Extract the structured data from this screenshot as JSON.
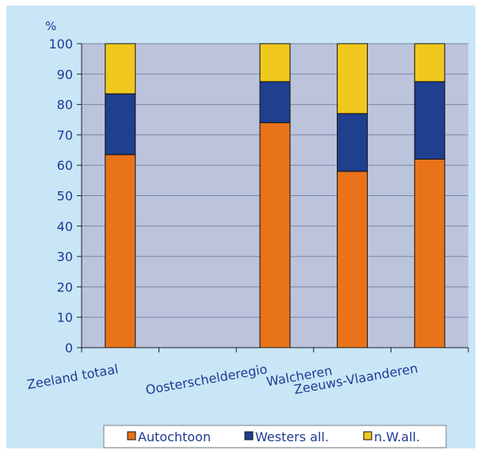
{
  "chart_data": {
    "type": "bar",
    "stacked": true,
    "ylabel": "%",
    "ylim": [
      0,
      100
    ],
    "yticks": [
      0,
      10,
      20,
      30,
      40,
      50,
      60,
      70,
      80,
      90,
      100
    ],
    "grid": true,
    "legend_position": "bottom",
    "categories": [
      "Zeeland totaal",
      "",
      "Oosterschelderegio",
      "Walcheren",
      "Zeeuws-Vlaanderen"
    ],
    "series": [
      {
        "name": "Autochtoon",
        "color": "#e8731a",
        "values": [
          63.5,
          null,
          74,
          58,
          62
        ]
      },
      {
        "name": "Westers all.",
        "color": "#1f3f8f",
        "values": [
          20,
          null,
          13.5,
          19,
          25.5
        ]
      },
      {
        "name": "n.W.all.",
        "color": "#f0c81e",
        "values": [
          16.5,
          null,
          12.5,
          23,
          12.5
        ]
      }
    ]
  }
}
